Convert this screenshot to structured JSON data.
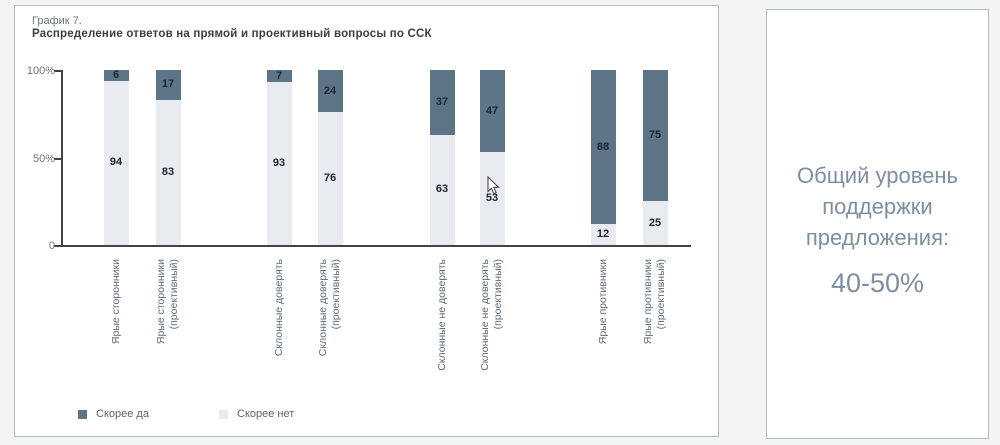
{
  "panel": {
    "title_line1": "График 7.",
    "title_line2": "Распределение ответов на прямой и проективный вопросы по ССК"
  },
  "chart_data": {
    "type": "bar",
    "stacked": true,
    "title": "Распределение ответов на прямой и проективный вопросы по ССК",
    "categories": [
      "Ярые сторонники",
      "Ярые сторонники\n(проективный)",
      "Склонные доверять",
      "Склонные доверять\n(проективный)",
      "Склонные не доверять",
      "Склонные не доверять\n(проективный)",
      "Ярые противники",
      "Ярые противники\n(проективный)"
    ],
    "series": [
      {
        "name": "Скорее да",
        "color": "#5e7587",
        "values": [
          6,
          17,
          7,
          24,
          37,
          47,
          88,
          75
        ]
      },
      {
        "name": "Скорее нет",
        "color": "#e8ebef",
        "values": [
          94,
          83,
          93,
          76,
          63,
          53,
          12,
          25
        ]
      }
    ],
    "ylim": [
      0,
      100
    ],
    "yticks": [
      {
        "label": "100%",
        "value": 100
      },
      {
        "label": "50%",
        "value": 50
      },
      {
        "label": "0",
        "value": 0
      }
    ],
    "grid": false,
    "legend_position": "bottom"
  },
  "side_panel": {
    "text": "Общий уровень поддержки предложения:",
    "value": "40-50%"
  },
  "colors": {
    "yes_bar": "#5e7587",
    "no_bar": "#e8ebef",
    "value_text": "#1a2531",
    "category_text": "#5d6b7a",
    "side_text": "#7d8fa1"
  }
}
